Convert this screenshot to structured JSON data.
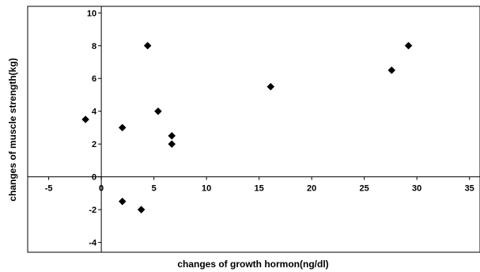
{
  "chart_data": {
    "type": "scatter",
    "xlabel": "changes of growth hormon(ng/dl)",
    "ylabel": "changes of muscle strength(kg)",
    "xlim": [
      -7,
      36
    ],
    "ylim": [
      -4.6,
      10.4
    ],
    "xticks": [
      -5,
      0,
      5,
      10,
      15,
      20,
      25,
      30,
      35
    ],
    "yticks": [
      -4,
      -2,
      0,
      2,
      4,
      6,
      8,
      10
    ],
    "grid": false,
    "legend": "none",
    "marker": "diamond",
    "series": [
      {
        "color": "#000000",
        "points": [
          {
            "x": -1.5,
            "y": 3.5
          },
          {
            "x": 2.0,
            "y": 3.0
          },
          {
            "x": 2.0,
            "y": -1.5
          },
          {
            "x": 3.8,
            "y": -2.0
          },
          {
            "x": 4.4,
            "y": 8.0
          },
          {
            "x": 5.4,
            "y": 4.0
          },
          {
            "x": 6.7,
            "y": 2.5
          },
          {
            "x": 6.7,
            "y": 2.0
          },
          {
            "x": 16.1,
            "y": 5.5
          },
          {
            "x": 27.6,
            "y": 6.5
          },
          {
            "x": 29.2,
            "y": 8.0
          }
        ]
      }
    ]
  }
}
